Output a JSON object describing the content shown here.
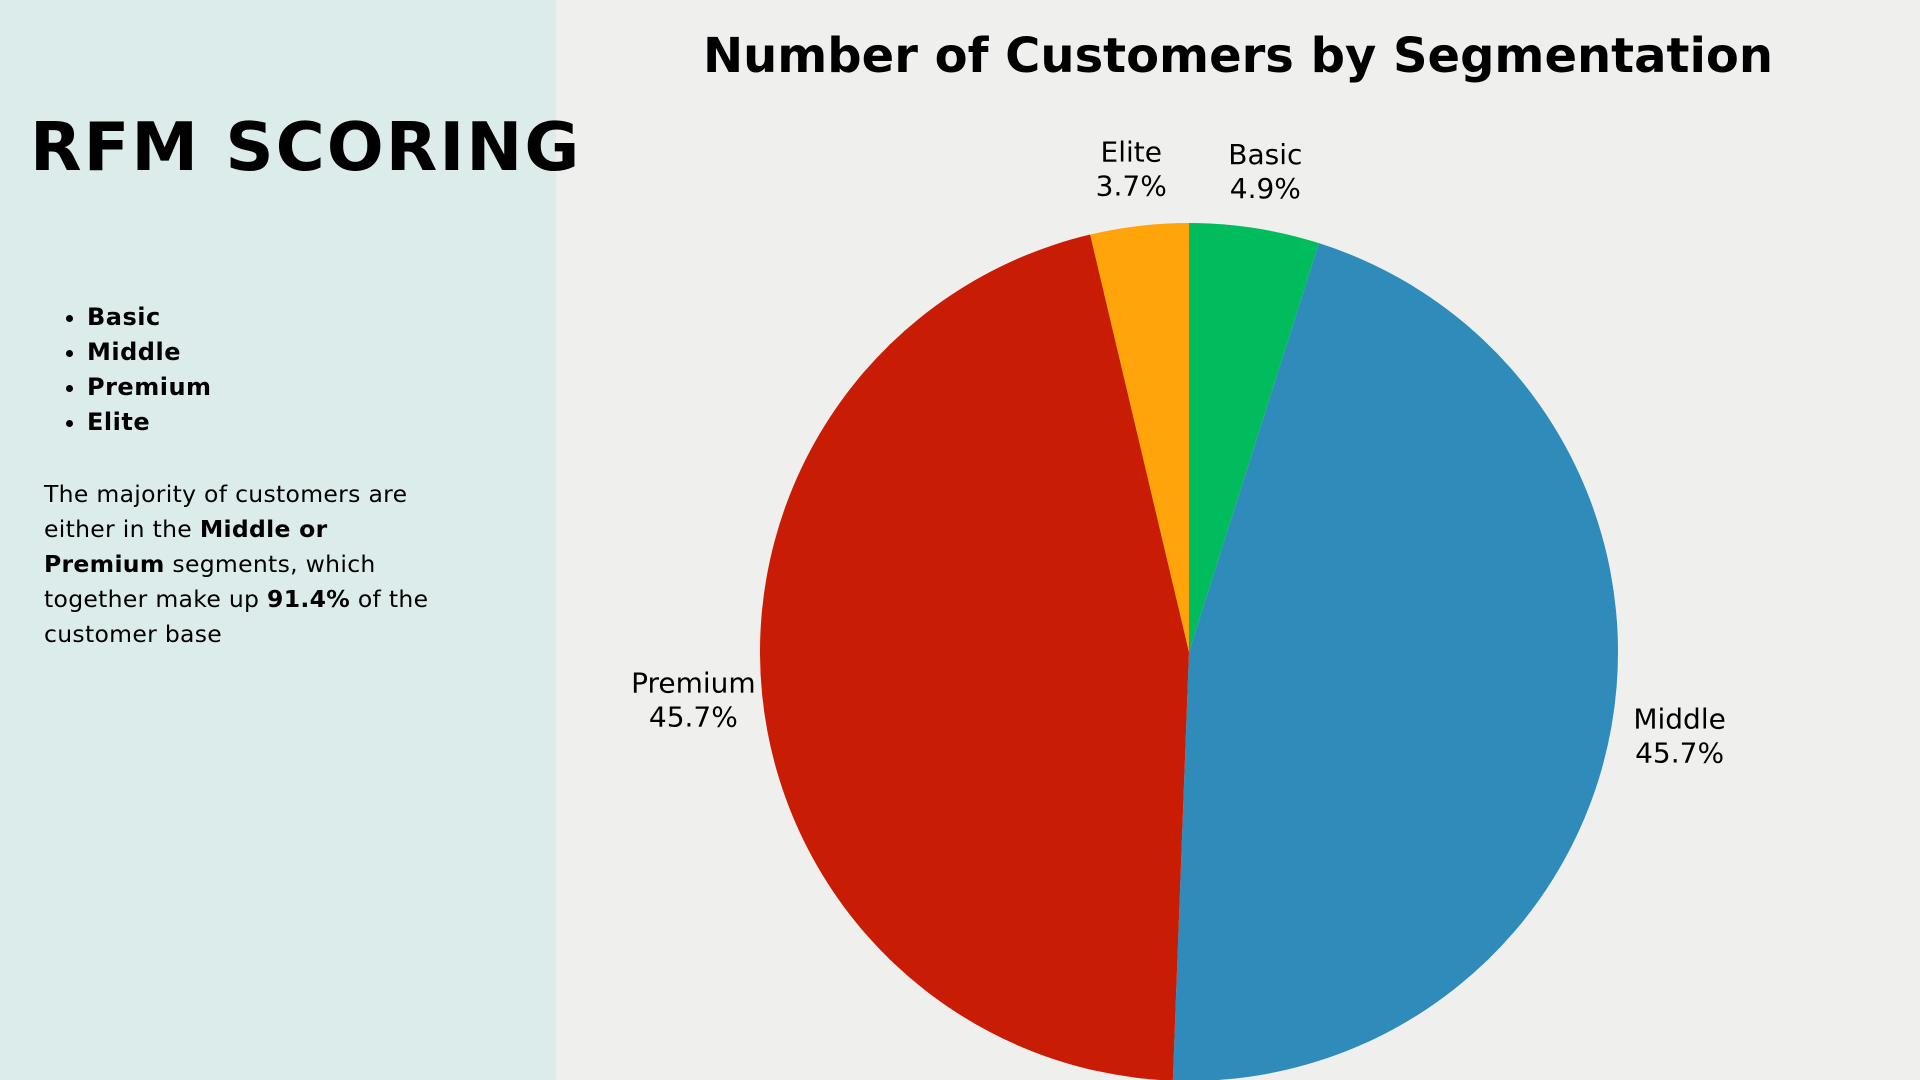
{
  "sidebar": {
    "title": "RFM SCORING",
    "segments": [
      "Basic",
      "Middle",
      "Premium",
      "Elite"
    ],
    "insight": {
      "p1": "The majority of customers are either in the ",
      "b1": "Middle or Premium",
      "p2": " segments, which together make up ",
      "b2": "91.4%",
      "p3": " of the customer base"
    }
  },
  "chart_data": {
    "type": "pie",
    "title": "Number of Customers by Segmentation",
    "slices": [
      {
        "label": "Basic",
        "value": 4.9,
        "display": "4.9%",
        "color": "#00bc5d"
      },
      {
        "label": "Middle",
        "value": 45.7,
        "display": "45.7%",
        "color": "#2e8bba"
      },
      {
        "label": "Premium",
        "value": 45.7,
        "display": "45.7%",
        "color": "#c91c05"
      },
      {
        "label": "Elite",
        "value": 3.7,
        "display": "3.7%",
        "color": "#ffa40a"
      }
    ],
    "start": "top",
    "direction": "clockwise"
  }
}
